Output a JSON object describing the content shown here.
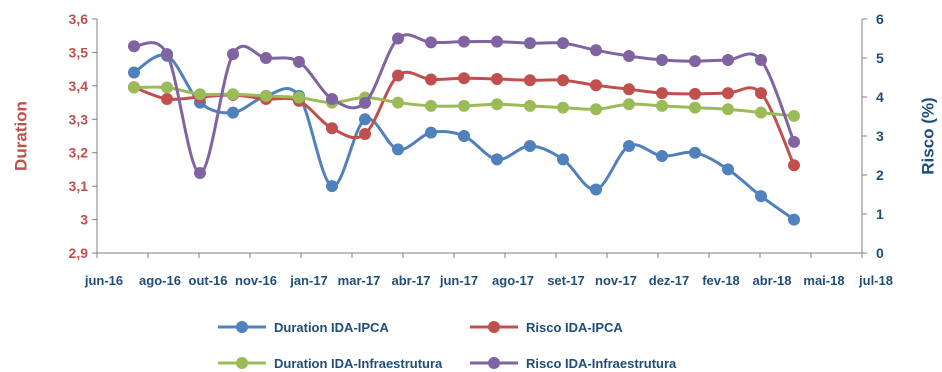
{
  "chart_data": {
    "type": "line",
    "ylabel": "Duration",
    "y2label": "Risco (%)",
    "ylim": [
      2.9,
      3.6
    ],
    "y2lim": [
      0,
      6
    ],
    "yticks": [
      "2,9",
      "3",
      "3,1",
      "3,2",
      "3,3",
      "3,4",
      "3,5",
      "3,6"
    ],
    "y2ticks": [
      "0",
      "1",
      "2",
      "3",
      "4",
      "5",
      "6"
    ],
    "xticks": [
      "jun-16",
      "ago-16",
      "out-16",
      "nov-16",
      "jan-17",
      "mar-17",
      "abr-17",
      "jun-17",
      "ago-17",
      "set-17",
      "nov-17",
      "dez-17",
      "fev-18",
      "abr-18",
      "mai-18",
      "jul-18"
    ],
    "grid": false,
    "legend": "bottom",
    "x": [
      "2016-08-15",
      "2016-09-15",
      "2016-10-15",
      "2016-11-15",
      "2016-12-15",
      "2017-01-15",
      "2017-02-15",
      "2017-03-15",
      "2017-04-15",
      "2017-05-15",
      "2017-06-15",
      "2017-07-15",
      "2017-08-15",
      "2017-09-15",
      "2017-10-15",
      "2017-11-15",
      "2017-12-15",
      "2018-01-15",
      "2018-02-15",
      "2018-03-15",
      "2018-04-15"
    ],
    "series": [
      {
        "name": "Duration IDA-IPCA",
        "axis": "left",
        "color": "#4f81bd",
        "values": [
          3.44,
          3.49,
          3.35,
          3.32,
          3.37,
          3.37,
          3.1,
          3.3,
          3.21,
          3.26,
          3.25,
          3.18,
          3.22,
          3.18,
          3.09,
          3.22,
          3.19,
          3.2,
          3.15,
          3.07,
          3.0
        ]
      },
      {
        "name": "Risco IDA-IPCA",
        "axis": "right",
        "color": "#c0504d",
        "values": [
          4.25,
          3.95,
          4.0,
          4.05,
          3.95,
          3.9,
          3.2,
          3.05,
          4.55,
          4.45,
          4.48,
          4.46,
          4.43,
          4.43,
          4.3,
          4.2,
          4.1,
          4.08,
          4.1,
          4.1,
          2.25
        ]
      },
      {
        "name": "Duration IDA-Infraestrutura",
        "axis": "left",
        "color": "#9bbb59",
        "values": [
          3.395,
          3.395,
          3.375,
          3.375,
          3.37,
          3.365,
          3.35,
          3.365,
          3.35,
          3.34,
          3.34,
          3.345,
          3.34,
          3.335,
          3.33,
          3.345,
          3.34,
          3.335,
          3.33,
          3.32,
          3.31
        ]
      },
      {
        "name": "Risco IDA-Infraestrutura",
        "axis": "right",
        "color": "#8064a2",
        "values": [
          5.3,
          5.1,
          2.05,
          5.1,
          5.0,
          4.9,
          3.95,
          3.85,
          5.5,
          5.4,
          5.42,
          5.42,
          5.38,
          5.38,
          5.2,
          5.05,
          4.95,
          4.92,
          4.95,
          4.95,
          2.85
        ]
      }
    ]
  }
}
